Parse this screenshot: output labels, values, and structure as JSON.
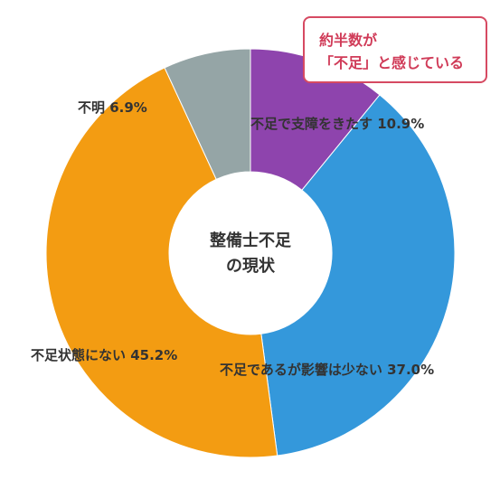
{
  "chart_data": {
    "type": "pie",
    "center_label": [
      "整備士不足",
      "の現状"
    ],
    "slices": [
      {
        "label": "不足で支障をきたす",
        "value": 10.9,
        "value_text": "10.9%",
        "color": "#8e44ad"
      },
      {
        "label": "不足であるが影響は少ない",
        "value": 37.0,
        "value_text": "37.0%",
        "color": "#3498db"
      },
      {
        "label": "不足状態にない",
        "value": 45.2,
        "value_text": "45.2%",
        "color": "#f39c12"
      },
      {
        "label": "不明",
        "value": 6.9,
        "value_text": "6.9%",
        "color": "#95a5a6"
      }
    ]
  },
  "callout": {
    "line1": "約半数が",
    "line2": "「不足」と感じている"
  }
}
